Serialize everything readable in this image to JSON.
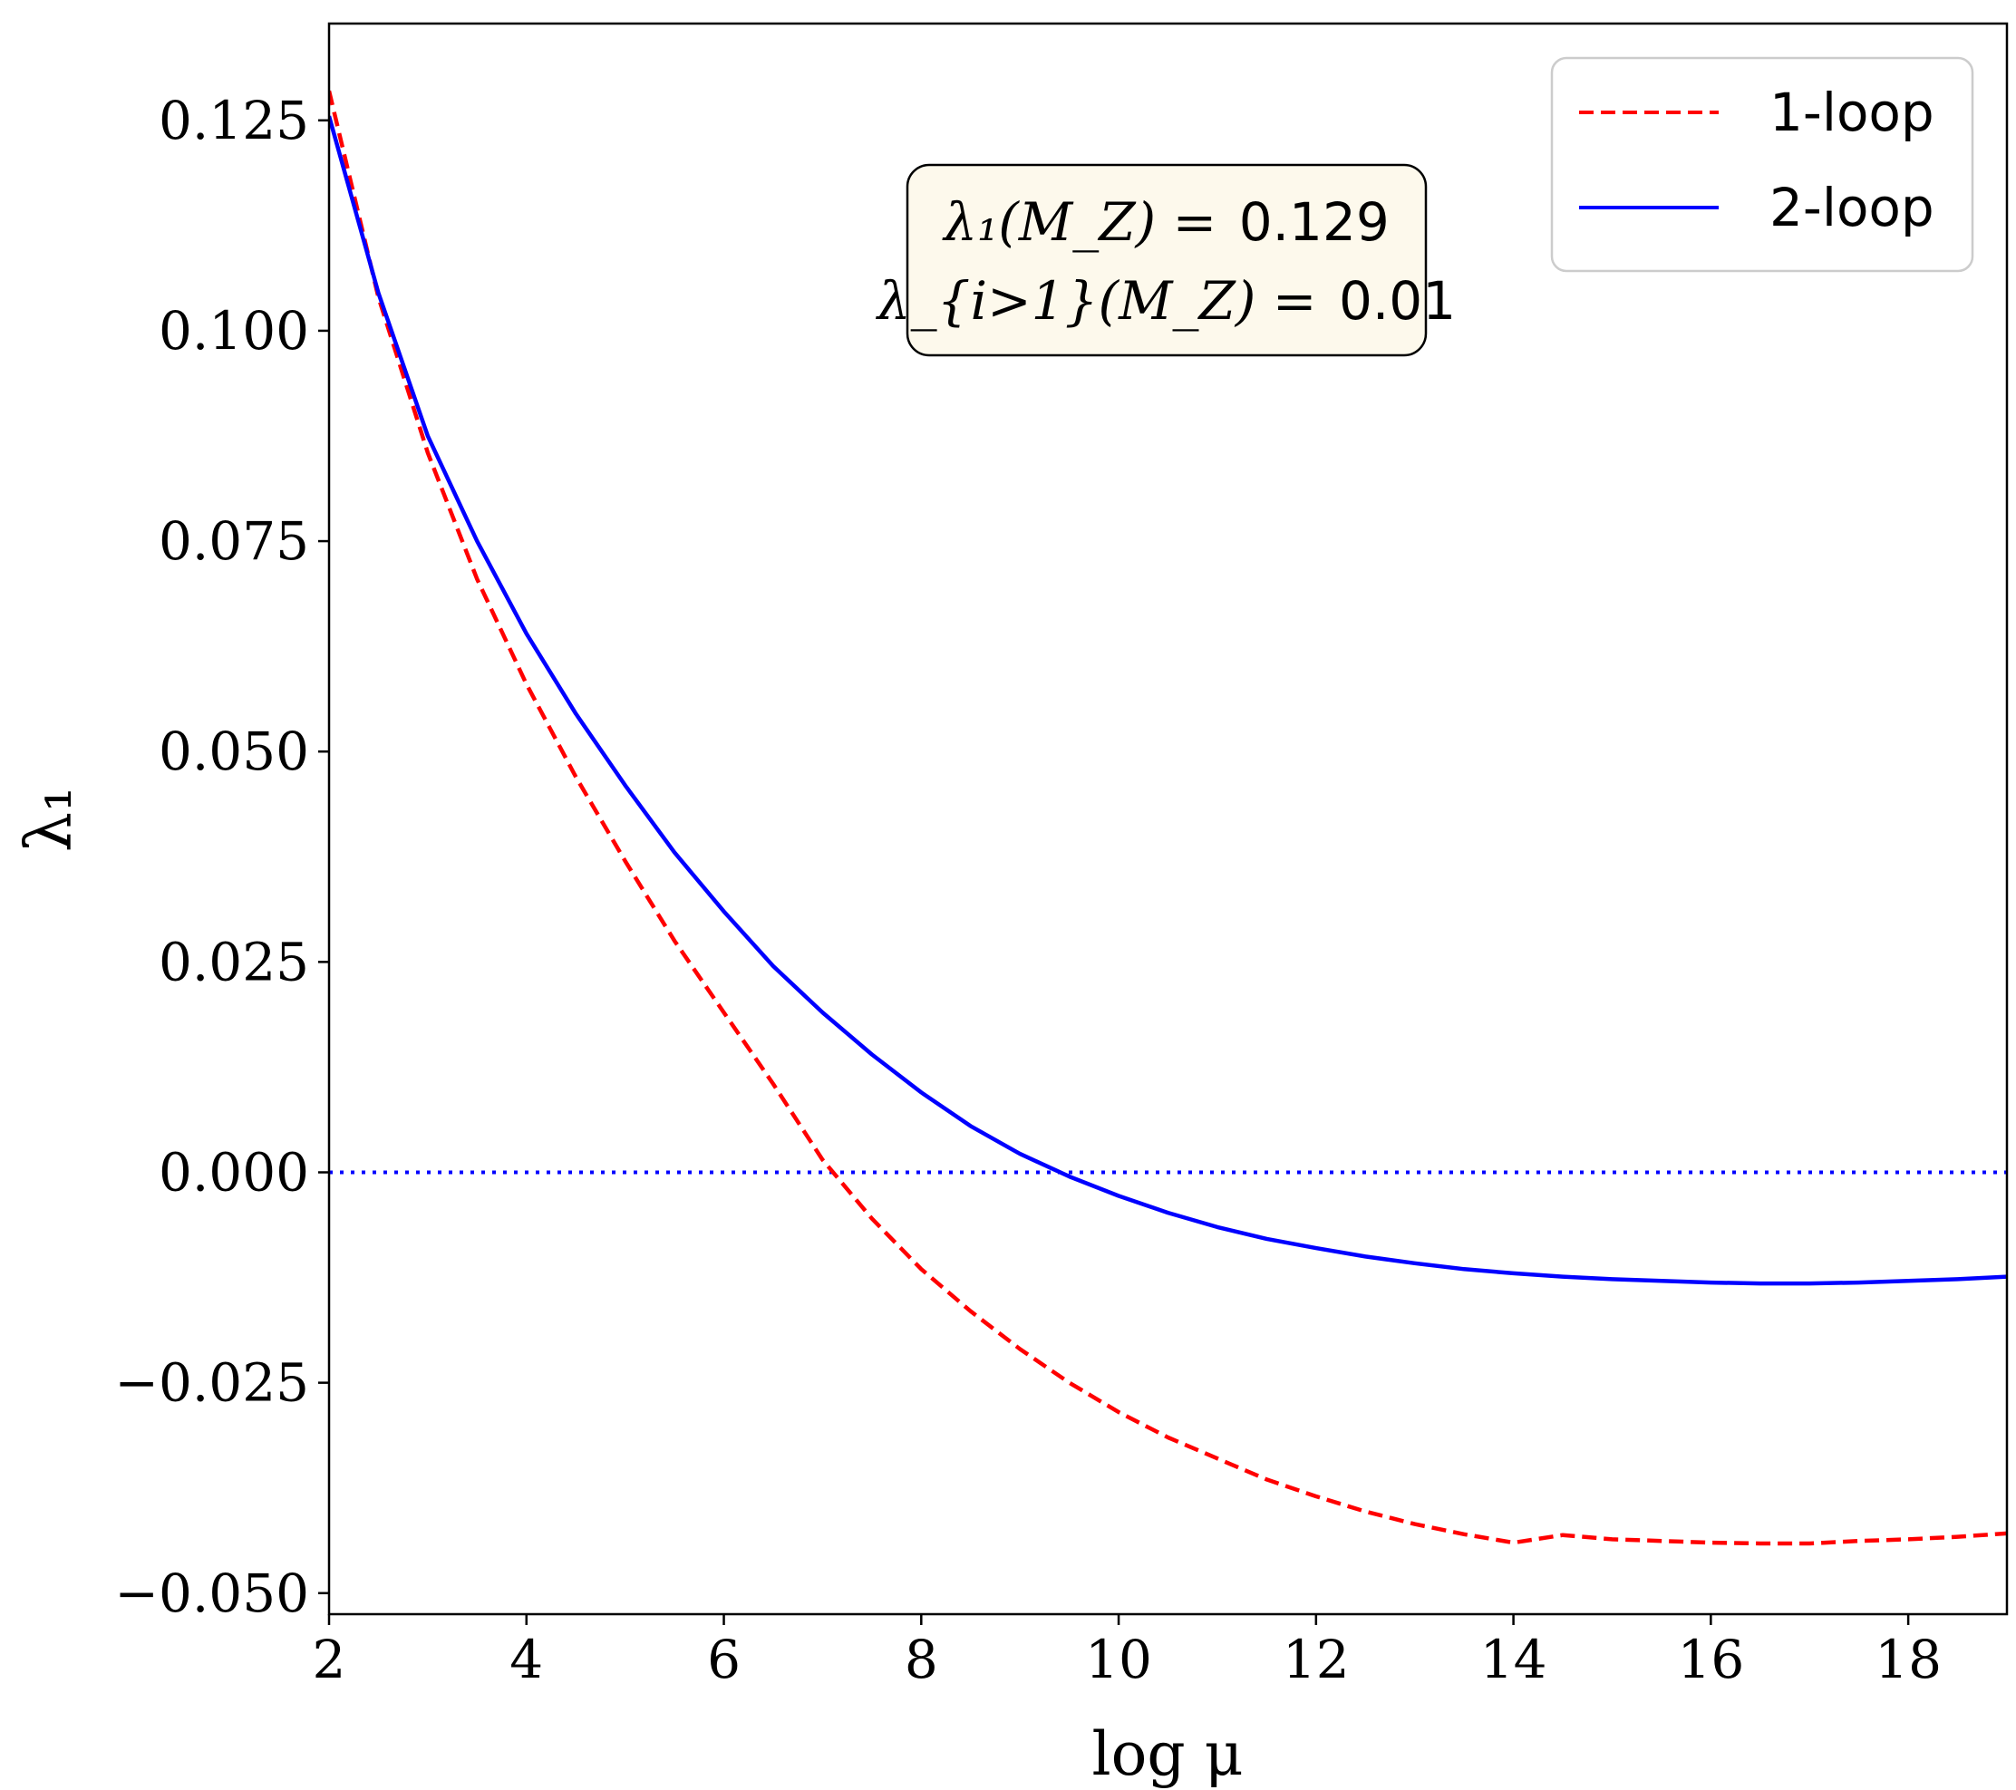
{
  "chart_data": {
    "type": "line",
    "xlabel": "log μ",
    "ylabel": "λ₁",
    "xlim": [
      2,
      19
    ],
    "ylim": [
      -0.0525,
      0.1365
    ],
    "x_ticks": [
      2,
      4,
      6,
      8,
      10,
      12,
      14,
      16,
      18
    ],
    "x_tick_labels": [
      "2",
      "4",
      "6",
      "8",
      "10",
      "12",
      "14",
      "16",
      "18"
    ],
    "y_ticks": [
      -0.05,
      -0.025,
      0,
      0.025,
      0.05,
      0.075,
      0.1,
      0.125
    ],
    "y_tick_labels": [
      "−0.050",
      "−0.025",
      "0.000",
      "0.025",
      "0.050",
      "0.075",
      "0.100",
      "0.125"
    ],
    "grid": false,
    "legend_position": "top-right",
    "annotation": {
      "line1_lhs": "λ₁(M_Z) =",
      "line1_value": "0.129",
      "line2_lhs": "λ_{i>1}(M_Z) =",
      "line2_value": "0.01"
    },
    "reference_line": {
      "y": 0,
      "color": "#0000ff",
      "style": "dotted"
    },
    "series": [
      {
        "name": "1-loop",
        "color": "#ff0000",
        "style": "dashed",
        "x": [
          2,
          2.5,
          3,
          3.5,
          4,
          4.5,
          5,
          5.5,
          6,
          6.5,
          7,
          7.5,
          8,
          8.5,
          9,
          9.5,
          10,
          10.5,
          11,
          11.5,
          12,
          12.5,
          13,
          13.5,
          14,
          14.5,
          15,
          15.5,
          16,
          16.5,
          17,
          17.5,
          18,
          18.5,
          19
        ],
        "y": [
          0.1285,
          0.104,
          0.0855,
          0.0705,
          0.058,
          0.047,
          0.037,
          0.0275,
          0.019,
          0.0105,
          0.0015,
          -0.0055,
          -0.0115,
          -0.0165,
          -0.021,
          -0.025,
          -0.0285,
          -0.0315,
          -0.034,
          -0.0365,
          -0.0385,
          -0.0403,
          -0.0418,
          -0.043,
          -0.044,
          -0.0431,
          -0.0436,
          -0.0438,
          -0.044,
          -0.0441,
          -0.0441,
          -0.0438,
          -0.0436,
          -0.0433,
          -0.0429
        ]
      },
      {
        "name": "2-loop",
        "color": "#0000ff",
        "style": "solid",
        "x": [
          2,
          2.5,
          3,
          3.5,
          4,
          4.5,
          5,
          5.5,
          6,
          6.5,
          7,
          7.5,
          8,
          8.5,
          9,
          9.5,
          10,
          10.5,
          11,
          11.5,
          12,
          12.5,
          13,
          13.5,
          14,
          14.5,
          15,
          15.5,
          16,
          16.5,
          17,
          17.5,
          18,
          18.5,
          19
        ],
        "y": [
          0.1255,
          0.1045,
          0.0875,
          0.075,
          0.064,
          0.0545,
          0.046,
          0.038,
          0.031,
          0.0245,
          0.019,
          0.014,
          0.0095,
          0.0055,
          0.0022,
          -0.0005,
          -0.0028,
          -0.0048,
          -0.0065,
          -0.0079,
          -0.009,
          -0.01,
          -0.0108,
          -0.0115,
          -0.012,
          -0.0124,
          -0.0127,
          -0.0129,
          -0.0131,
          -0.0132,
          -0.0132,
          -0.0131,
          -0.0129,
          -0.0127,
          -0.0124
        ]
      }
    ]
  }
}
